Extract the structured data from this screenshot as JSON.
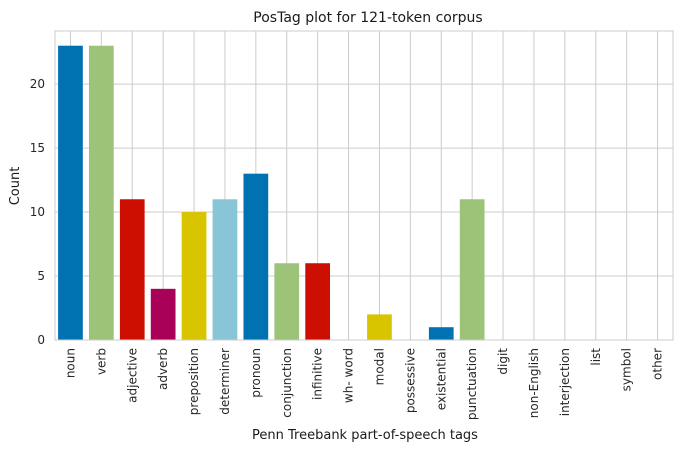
{
  "chart_data": {
    "type": "bar",
    "title": "PosTag plot for 121-token corpus",
    "xlabel": "Penn Treebank part-of-speech tags",
    "ylabel": "Count",
    "categories": [
      "noun",
      "verb",
      "adjective",
      "adverb",
      "preposition",
      "determiner",
      "pronoun",
      "conjunction",
      "infinitive",
      "wh- word",
      "modal",
      "possessive",
      "existential",
      "punctuation",
      "digit",
      "non-English",
      "interjection",
      "list",
      "symbol",
      "other"
    ],
    "values": [
      23,
      23,
      11,
      4,
      10,
      11,
      13,
      6,
      6,
      0,
      2,
      0,
      1,
      11,
      0,
      0,
      0,
      0,
      0,
      0
    ],
    "colors": [
      "#0072b2",
      "#9dc378",
      "#cc0f00",
      "#a90058",
      "#d9c400",
      "#88c6d7",
      "#0072b2",
      "#9dc378",
      "#cc0f00",
      "#a90058",
      "#d9c400",
      "#88c6d7",
      "#0072b2",
      "#9dc378",
      "#cc0f00",
      "#a90058",
      "#d9c400",
      "#88c6d7",
      "#0072b2",
      "#9dc378"
    ],
    "yticks": [
      "0",
      "5",
      "10",
      "15",
      "20"
    ],
    "ylim": [
      0,
      24.15
    ],
    "grid": true
  }
}
